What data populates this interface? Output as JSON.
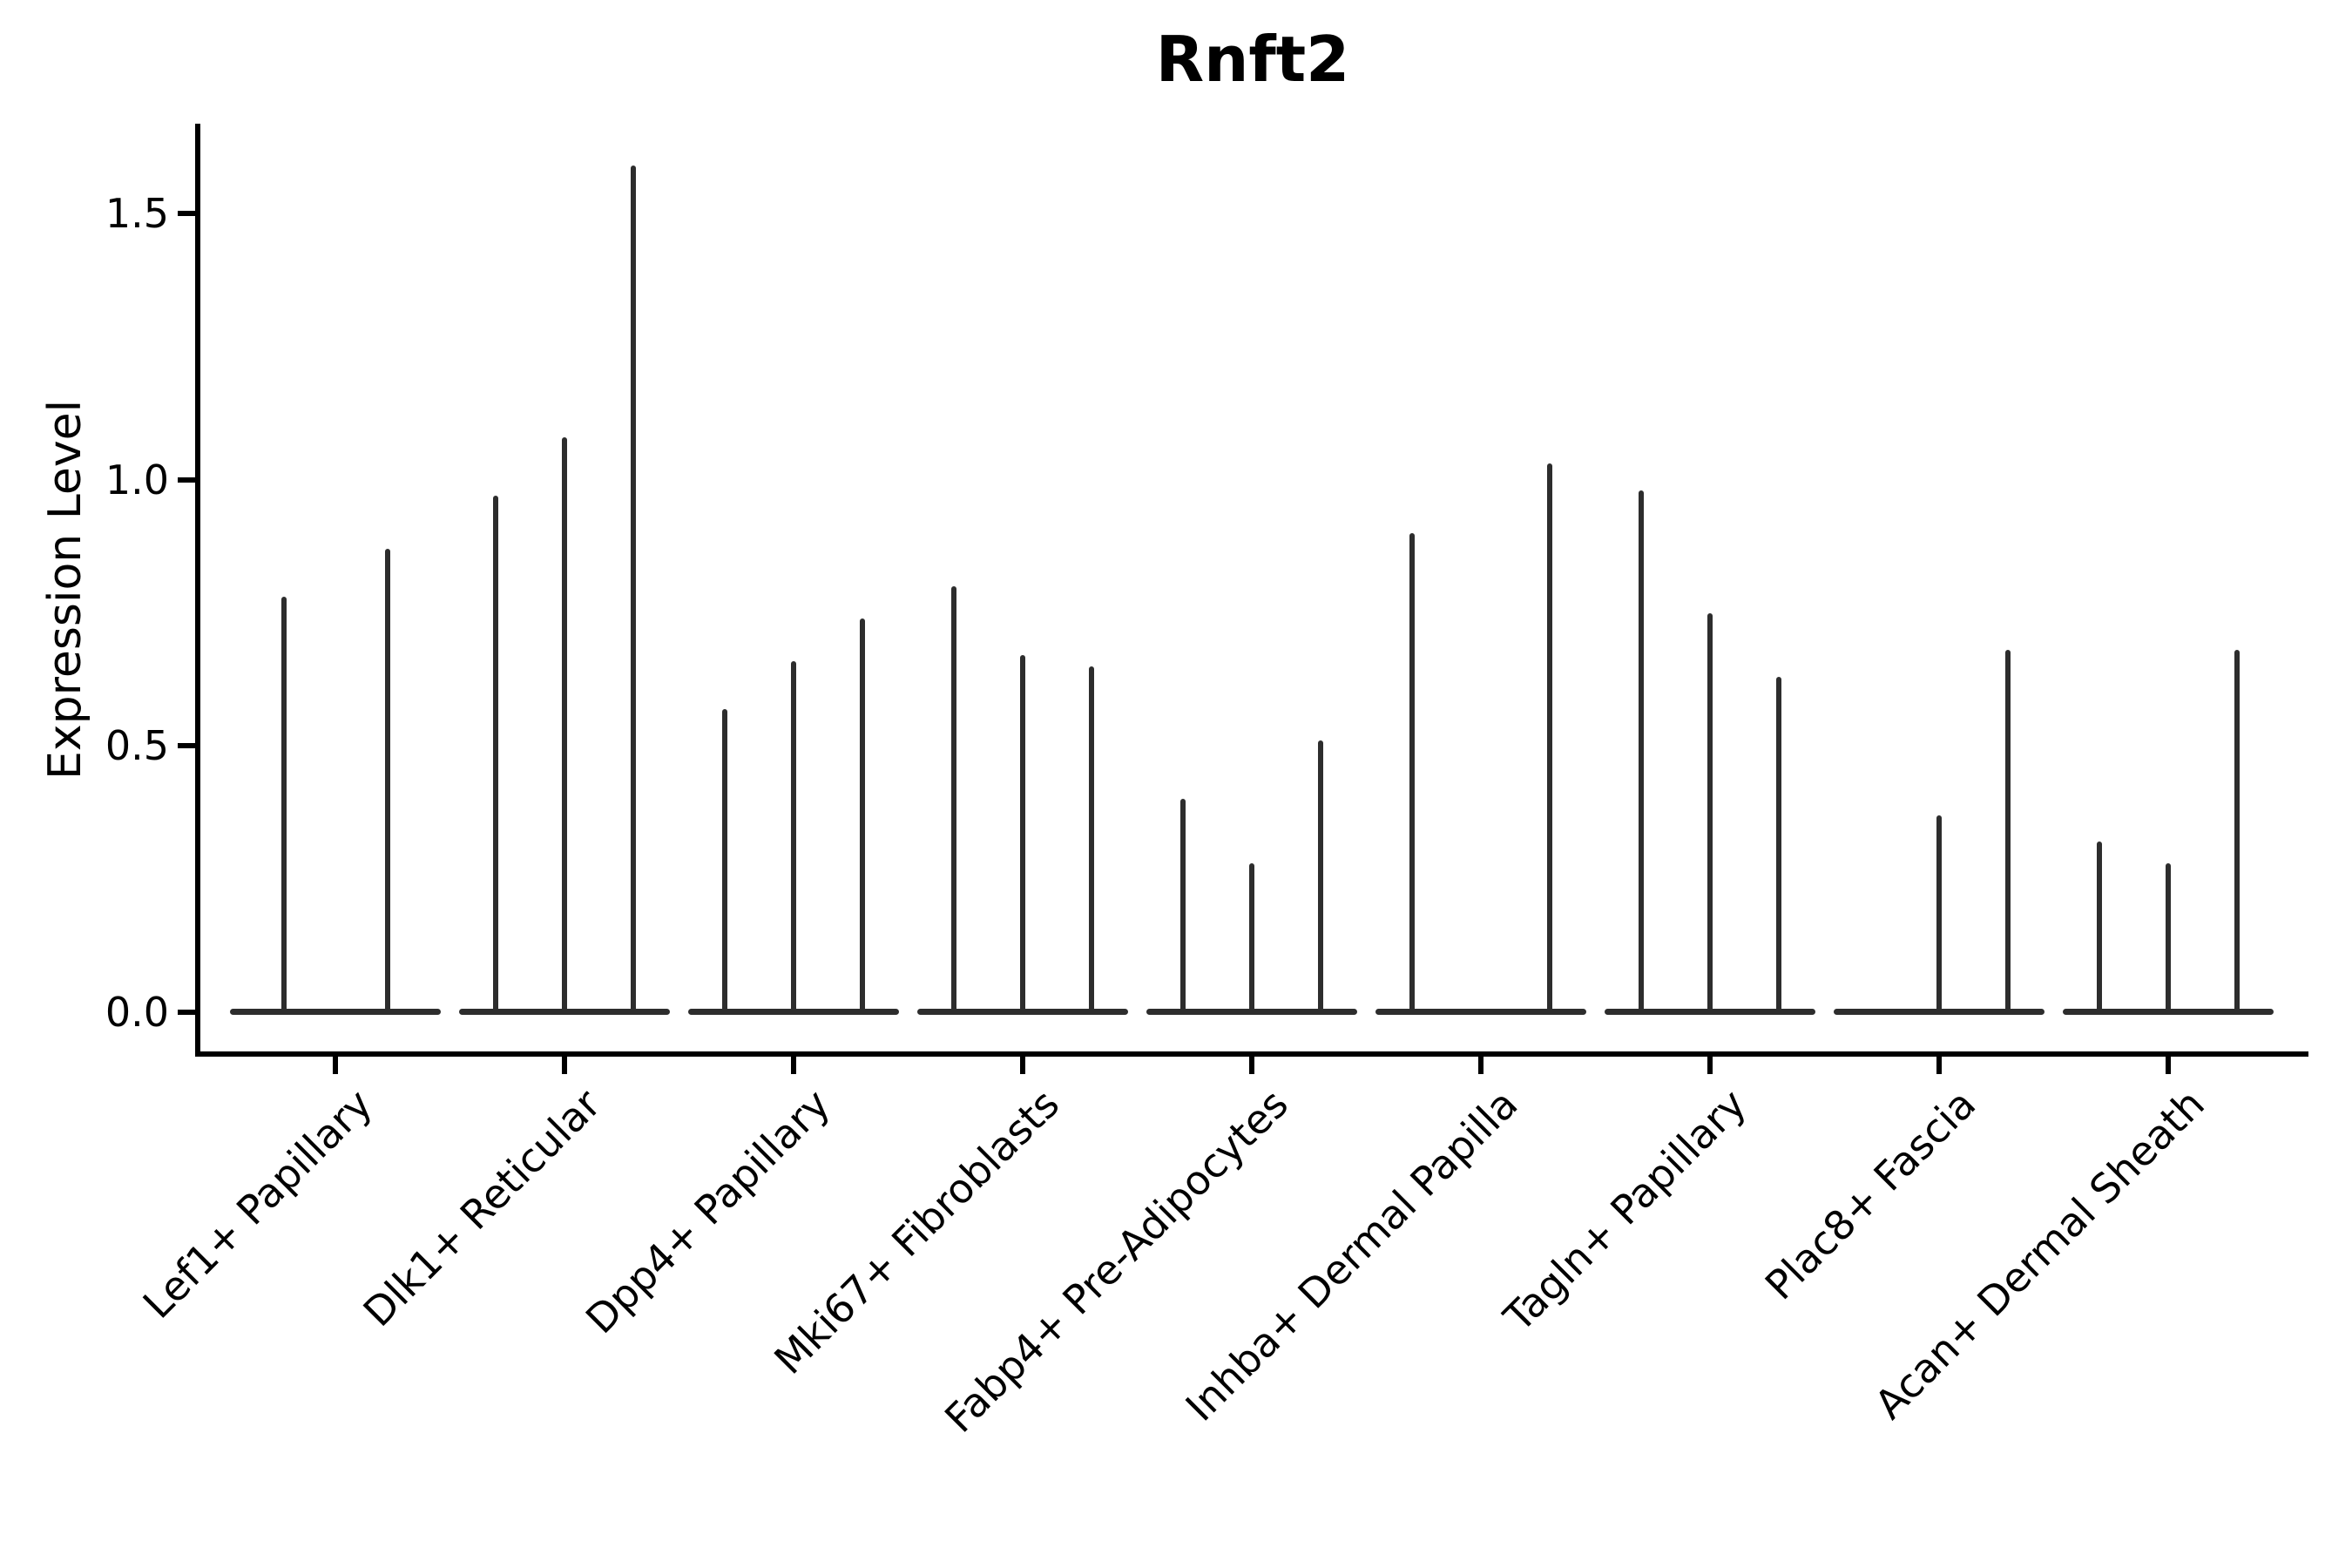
{
  "chart_data": {
    "type": "violin",
    "title": "Rnft2",
    "ylabel": "Expression Level",
    "xlabel": "",
    "ylim": [
      0.0,
      1.67
    ],
    "yticks": [
      0.0,
      0.5,
      1.0,
      1.5
    ],
    "ytick_labels": [
      "0.0",
      "0.5",
      "1.0",
      "1.5"
    ],
    "grid": false,
    "legend_position": "none",
    "categories": [
      "Lef1+ Papillary",
      "Dlk1+ Reticular",
      "Dpp4+ Papillary",
      "Mki67+ Fibroblasts",
      "Fabp4+ Pre-Adipocytes",
      "Inhba+ Dermal Papilla",
      "Tagln+ Papillary",
      "Plac8+ Fascia",
      "Acan+ Dermal Sheath"
    ],
    "description": "Each category shows thin violins of single-cell expression; bodies are flat disks at 0 with a narrow spike rising to the maximum expression value. A 0 entry means a flat violin with no spike.",
    "groups": [
      {
        "category": "Lef1+ Papillary",
        "violin_maxima": [
          0.78,
          0.87
        ]
      },
      {
        "category": "Dlk1+ Reticular",
        "violin_maxima": [
          0.97,
          1.08,
          1.59
        ]
      },
      {
        "category": "Dpp4+ Papillary",
        "violin_maxima": [
          0.57,
          0.66,
          0.74
        ]
      },
      {
        "category": "Mki67+ Fibroblasts",
        "violin_maxima": [
          0.8,
          0.67,
          0.65
        ]
      },
      {
        "category": "Fabp4+ Pre-Adipocytes",
        "violin_maxima": [
          0.4,
          0.28,
          0.51
        ]
      },
      {
        "category": "Inhba+ Dermal Papilla",
        "violin_maxima": [
          0.9,
          0.0,
          1.03
        ]
      },
      {
        "category": "Tagln+ Papillary",
        "violin_maxima": [
          0.98,
          0.75,
          0.63
        ]
      },
      {
        "category": "Plac8+ Fascia",
        "violin_maxima": [
          0.0,
          0.37,
          0.68
        ]
      },
      {
        "category": "Acan+ Dermal Sheath",
        "violin_maxima": [
          0.32,
          0.28,
          0.68
        ]
      }
    ],
    "colors": {
      "violin_line": "#2d2d2d",
      "axis": "#000000",
      "text": "#000000",
      "background": "#ffffff"
    }
  }
}
